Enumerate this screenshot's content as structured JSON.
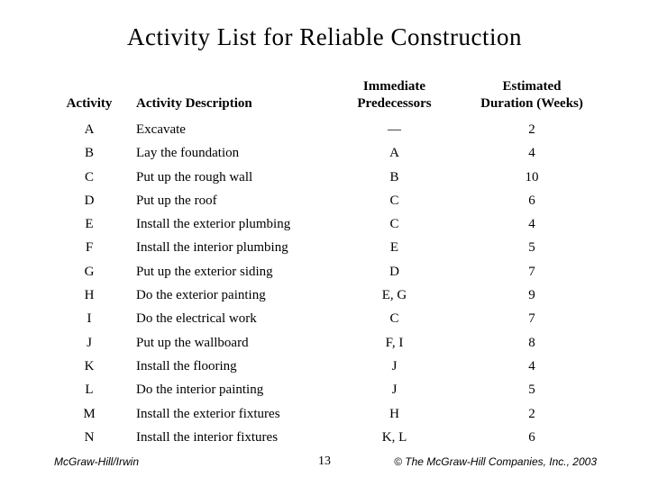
{
  "title": "Activity List for Reliable Construction",
  "table": {
    "headers": {
      "activity": "Activity",
      "description": "Activity Description",
      "predecessors": "Immediate\nPredecessors",
      "duration": "Estimated\nDuration (Weeks)"
    },
    "rows": [
      {
        "activity": "A",
        "description": "Excavate",
        "predecessors": "—",
        "duration": "2"
      },
      {
        "activity": "B",
        "description": "Lay the foundation",
        "predecessors": "A",
        "duration": "4"
      },
      {
        "activity": "C",
        "description": "Put up the rough wall",
        "predecessors": "B",
        "duration": "10"
      },
      {
        "activity": "D",
        "description": "Put up the roof",
        "predecessors": "C",
        "duration": "6"
      },
      {
        "activity": "E",
        "description": "Install the exterior plumbing",
        "predecessors": "C",
        "duration": "4"
      },
      {
        "activity": "F",
        "description": "Install the interior plumbing",
        "predecessors": "E",
        "duration": "5"
      },
      {
        "activity": "G",
        "description": "Put up the exterior siding",
        "predecessors": "D",
        "duration": "7"
      },
      {
        "activity": "H",
        "description": "Do the exterior painting",
        "predecessors": "E, G",
        "duration": "9"
      },
      {
        "activity": "I",
        "description": "Do the electrical work",
        "predecessors": "C",
        "duration": "7"
      },
      {
        "activity": "J",
        "description": "Put up the wallboard",
        "predecessors": "F, I",
        "duration": "8"
      },
      {
        "activity": "K",
        "description": "Install the flooring",
        "predecessors": "J",
        "duration": "4"
      },
      {
        "activity": "L",
        "description": "Do the interior painting",
        "predecessors": "J",
        "duration": "5"
      },
      {
        "activity": "M",
        "description": "Install the exterior fixtures",
        "predecessors": "H",
        "duration": "2"
      },
      {
        "activity": "N",
        "description": "Install the interior fixtures",
        "predecessors": "K, L",
        "duration": "6"
      }
    ]
  },
  "footer": {
    "left": "McGraw-Hill/Irwin",
    "page": "13",
    "right": "© The McGraw-Hill Companies, Inc., 2003"
  }
}
